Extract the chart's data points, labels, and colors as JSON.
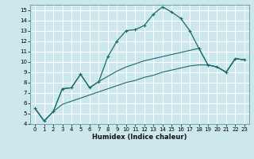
{
  "xlabel": "Humidex (Indice chaleur)",
  "bg_color": "#cce8ec",
  "grid_color": "#ffffff",
  "line_color": "#1a6b6b",
  "xlim": [
    -0.5,
    23.5
  ],
  "ylim": [
    4,
    15.5
  ],
  "xticks": [
    0,
    1,
    2,
    3,
    4,
    5,
    6,
    7,
    8,
    9,
    10,
    11,
    12,
    13,
    14,
    15,
    16,
    17,
    18,
    19,
    20,
    21,
    22,
    23
  ],
  "yticks": [
    4,
    5,
    6,
    7,
    8,
    9,
    10,
    11,
    12,
    13,
    14,
    15
  ],
  "line1_x": [
    0,
    1,
    2,
    3,
    4,
    5,
    6,
    7,
    8,
    9,
    10,
    11,
    12,
    13,
    14,
    15,
    16,
    17,
    18,
    19,
    20,
    21,
    22,
    23
  ],
  "line1_y": [
    5.5,
    4.3,
    5.2,
    7.4,
    7.5,
    8.8,
    7.5,
    8.1,
    10.5,
    12.0,
    13.0,
    13.1,
    13.5,
    14.6,
    15.3,
    14.8,
    14.2,
    13.0,
    11.3,
    9.7,
    9.5,
    9.0,
    10.3,
    10.2
  ],
  "line2_x": [
    0,
    1,
    2,
    3,
    4,
    5,
    6,
    7,
    8,
    9,
    10,
    11,
    12,
    13,
    14,
    15,
    16,
    17,
    18,
    19,
    20,
    21,
    22,
    23
  ],
  "line2_y": [
    5.5,
    4.3,
    5.2,
    7.4,
    7.5,
    8.8,
    7.5,
    8.1,
    8.6,
    9.1,
    9.5,
    9.8,
    10.1,
    10.3,
    10.5,
    10.7,
    10.9,
    11.1,
    11.3,
    9.7,
    9.5,
    9.0,
    10.3,
    10.2
  ],
  "line3_x": [
    0,
    1,
    2,
    3,
    4,
    5,
    6,
    7,
    8,
    9,
    10,
    11,
    12,
    13,
    14,
    15,
    16,
    17,
    18,
    19,
    20,
    21,
    22,
    23
  ],
  "line3_y": [
    5.5,
    4.3,
    5.2,
    5.9,
    6.2,
    6.5,
    6.8,
    7.1,
    7.4,
    7.7,
    8.0,
    8.2,
    8.5,
    8.7,
    9.0,
    9.2,
    9.4,
    9.6,
    9.7,
    9.7,
    9.5,
    9.0,
    10.3,
    10.2
  ],
  "xlabel_fontsize": 6.0,
  "tick_fontsize": 5.0
}
